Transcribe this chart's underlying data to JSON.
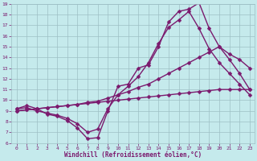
{
  "xlabel": "Windchill (Refroidissement éolien,°C)",
  "ylabel": "",
  "xlim": [
    -0.5,
    23.5
  ],
  "ylim": [
    6,
    19
  ],
  "xticks": [
    0,
    1,
    2,
    3,
    4,
    5,
    6,
    7,
    8,
    9,
    10,
    11,
    12,
    13,
    14,
    15,
    16,
    17,
    18,
    19,
    20,
    21,
    22,
    23
  ],
  "yticks": [
    6,
    7,
    8,
    9,
    10,
    11,
    12,
    13,
    14,
    15,
    16,
    17,
    18,
    19
  ],
  "background_color": "#c5eaec",
  "grid_color": "#9dbfc5",
  "line_color": "#7b1a6e",
  "markersize": 2.5,
  "linewidth": 1.0,
  "curves": [
    {
      "x": [
        0,
        1,
        2,
        3,
        4,
        5,
        6,
        7,
        8,
        9,
        10,
        11,
        12,
        13,
        14,
        15,
        16,
        17,
        18,
        19,
        20,
        21,
        22,
        23
      ],
      "y": [
        9.2,
        9.5,
        9.2,
        8.7,
        8.5,
        8.1,
        7.4,
        6.4,
        6.5,
        9.0,
        11.3,
        11.5,
        13.0,
        13.3,
        15.0,
        17.3,
        18.3,
        18.5,
        19.1,
        16.7,
        15.0,
        13.8,
        12.5,
        11.0
      ]
    },
    {
      "x": [
        0,
        1,
        2,
        3,
        4,
        5,
        6,
        7,
        8,
        9,
        10,
        11,
        12,
        13,
        14,
        15,
        16,
        17,
        18,
        19,
        20,
        21,
        22,
        23
      ],
      "y": [
        9.2,
        9.3,
        9.0,
        8.8,
        8.6,
        8.3,
        7.8,
        7.0,
        7.3,
        9.2,
        10.5,
        11.3,
        12.2,
        13.5,
        15.3,
        16.8,
        17.5,
        18.3,
        16.7,
        14.8,
        13.5,
        12.5,
        11.5,
        10.5
      ]
    },
    {
      "x": [
        0,
        1,
        2,
        3,
        4,
        5,
        6,
        7,
        8,
        9,
        10,
        11,
        12,
        13,
        14,
        15,
        16,
        17,
        18,
        19,
        20,
        21,
        22,
        23
      ],
      "y": [
        9.0,
        9.1,
        9.2,
        9.3,
        9.4,
        9.5,
        9.6,
        9.8,
        9.9,
        10.2,
        10.5,
        10.8,
        11.2,
        11.5,
        12.0,
        12.5,
        13.0,
        13.5,
        14.0,
        14.5,
        15.0,
        14.3,
        13.8,
        13.0
      ]
    },
    {
      "x": [
        0,
        1,
        2,
        3,
        4,
        5,
        6,
        7,
        8,
        9,
        10,
        11,
        12,
        13,
        14,
        15,
        16,
        17,
        18,
        19,
        20,
        21,
        22,
        23
      ],
      "y": [
        9.0,
        9.1,
        9.2,
        9.3,
        9.4,
        9.5,
        9.6,
        9.7,
        9.8,
        9.9,
        10.0,
        10.1,
        10.2,
        10.3,
        10.4,
        10.5,
        10.6,
        10.7,
        10.8,
        10.9,
        11.0,
        11.0,
        11.0,
        11.0
      ]
    }
  ]
}
